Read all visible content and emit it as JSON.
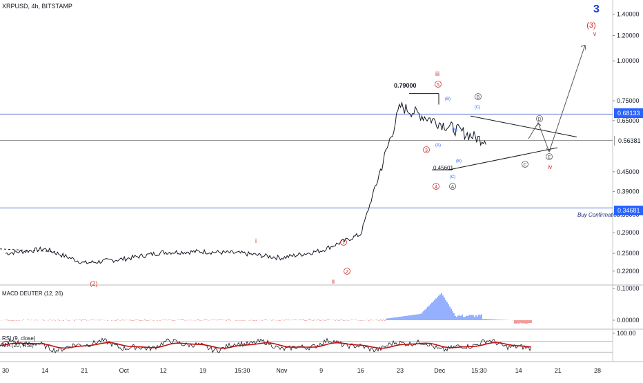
{
  "symbol_line": "XRPUSD, 4h, BITSTAMP",
  "colors": {
    "up": "#131722",
    "rsi_line": "#131722",
    "rsi_ma": "#c01010",
    "macd_pos": "#2962ff",
    "macd_neg": "#e53935",
    "wave_red": "#d32f2f",
    "wave_blue": "#2962ff",
    "wave_grey": "#555555",
    "level_line": "#6b7fd6",
    "big_wave": "#1a3bd4"
  },
  "chart_data": [
    {
      "type": "line",
      "title": "XRPUSD, 4h, BITSTAMP",
      "y_scale": "log",
      "ylim": [
        0.2,
        1.55
      ],
      "y_ticks": [
        "1.40000",
        "1.20000",
        "1.00000",
        "0.75000",
        "0.65000",
        "0.45000",
        "0.39000",
        "0.33000",
        "0.29000",
        "0.25000",
        "0.22000"
      ],
      "x_ticks": [
        "30",
        "14",
        "21",
        "Oct",
        "12",
        "19",
        "15:30",
        "Nov",
        "9",
        "16",
        "23",
        "Dec",
        "15:30",
        "14",
        "21",
        "28"
      ],
      "series": [
        {
          "key": "price",
          "points": [
            [
              "30",
              0.25
            ],
            [
              "14",
              0.258
            ],
            [
              "21",
              0.233
            ],
            [
              "Oct",
              0.24
            ],
            [
              "12",
              0.252
            ],
            [
              "19",
              0.253
            ],
            [
              "15:30",
              0.25
            ],
            [
              "Nov",
              0.242
            ],
            [
              "9",
              0.255
            ],
            [
              "16",
              0.287
            ],
            [
              "23",
              0.72
            ],
            [
              "Dec",
              0.64
            ],
            [
              "15:30",
              0.57
            ]
          ]
        }
      ],
      "levels": [
        {
          "value": 0.68133,
          "label": "0.68133"
        },
        {
          "value": 0.56381,
          "label": "0.56381"
        },
        {
          "value": 0.34681,
          "label": "0.34681"
        }
      ],
      "annotations": {
        "peak": "0.79000",
        "low": "0.45601",
        "buy_confirmation": "Buy Confirmation",
        "wave_3_big": "3",
        "wave_3_primary": "(3)",
        "wave_v": "v",
        "wave_i": "i",
        "wave_ii": "ii",
        "wave_iii": "iii",
        "wave_iv": "iv",
        "wave_2_primary": "(2)",
        "circled_1": "1",
        "circled_2": "2",
        "circled_3": "3",
        "circled_4": "4",
        "circled_5": "5",
        "sub_A_paren": "(A)",
        "sub_B_paren": "(B)",
        "sub_C_paren": "(C)",
        "sub_A_paren_2": "(A)",
        "sub_B_paren_2": "(B)",
        "sub_C_paren_2": "(C)",
        "tri_A": "A",
        "tri_B": "B",
        "tri_C": "C",
        "tri_D": "D",
        "tri_E": "E"
      }
    },
    {
      "type": "bar",
      "title": "MACD DEUTER (12, 26)",
      "y_ticks": [
        "0.10000",
        "0.00000"
      ],
      "peak_value": 0.085
    },
    {
      "type": "line",
      "title": "RSI (9, close)",
      "subtitle": "MA (20, RSI)",
      "ylim": [
        0,
        100
      ],
      "y_ticks": [
        "100.00"
      ],
      "levels": [
        70,
        30
      ]
    }
  ]
}
